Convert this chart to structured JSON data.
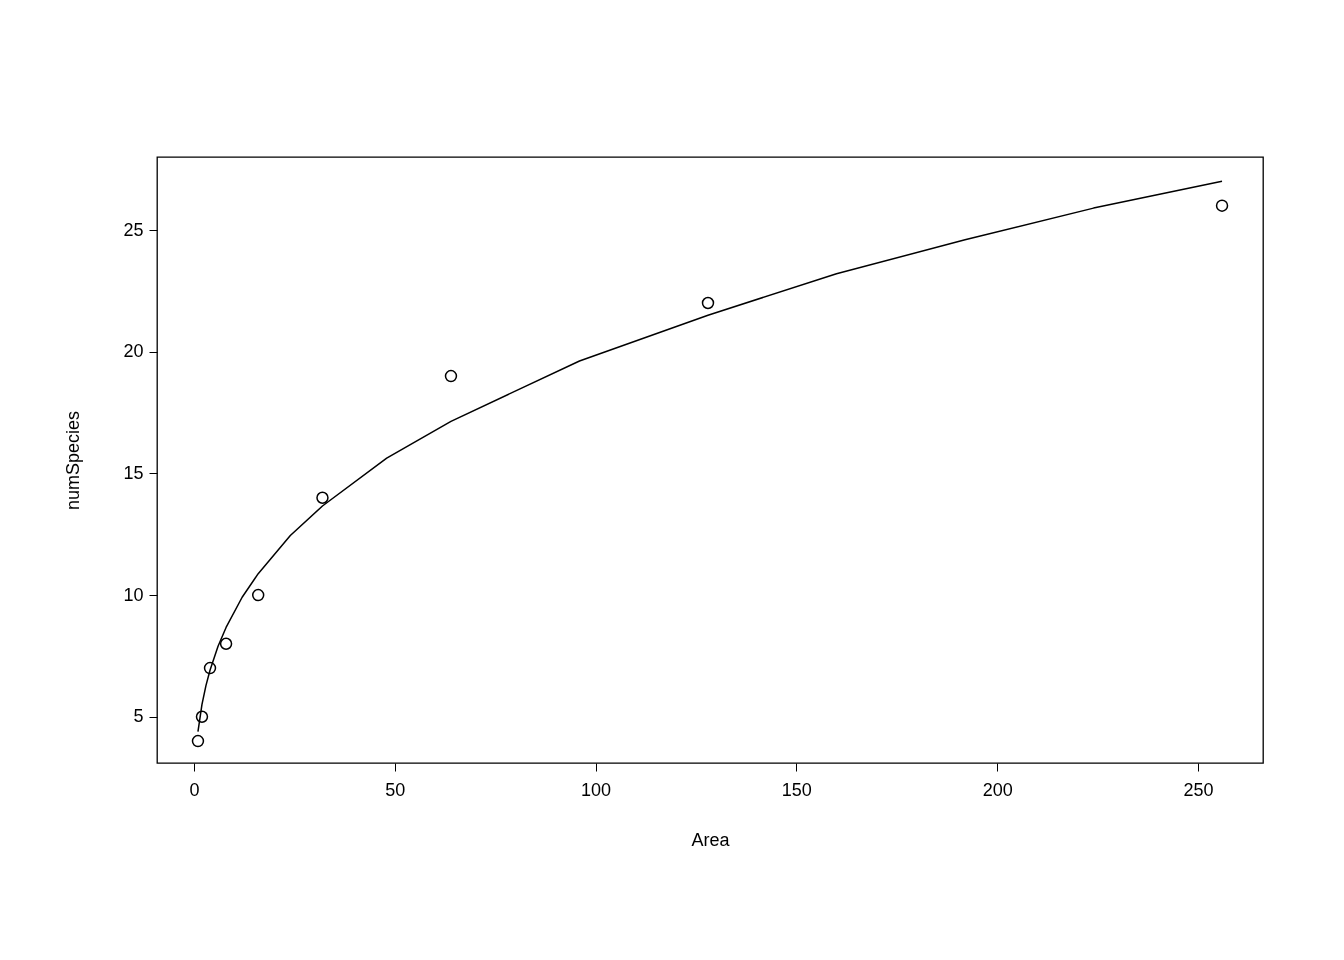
{
  "chart_data": {
    "type": "scatter",
    "xlabel": "Area",
    "ylabel": "numSpecies",
    "xlim": [
      -9.2,
      266.2
    ],
    "ylim": [
      3.1,
      28.0
    ],
    "xticks": [
      0,
      50,
      100,
      150,
      200,
      250
    ],
    "yticks": [
      5,
      10,
      15,
      20,
      25
    ],
    "grid": false,
    "legend": false,
    "series": [
      {
        "type": "scatter",
        "marker": "circle",
        "color": "#000000",
        "x": [
          1,
          2,
          4,
          8,
          16,
          32,
          64,
          128,
          256
        ],
        "values": [
          4,
          5,
          7,
          8,
          10,
          14,
          19,
          22,
          26
        ]
      },
      {
        "type": "line",
        "line_style": "solid",
        "color": "#000000",
        "x": [
          1,
          2,
          3,
          4,
          6,
          8,
          12,
          16,
          24,
          32,
          48,
          64,
          96,
          128,
          160,
          192,
          224,
          256
        ],
        "values": [
          4.39,
          5.51,
          6.29,
          6.91,
          7.9,
          8.67,
          9.91,
          10.88,
          12.45,
          13.66,
          15.63,
          17.14,
          19.62,
          21.5,
          23.2,
          24.6,
          25.9,
          27.0
        ]
      }
    ]
  }
}
